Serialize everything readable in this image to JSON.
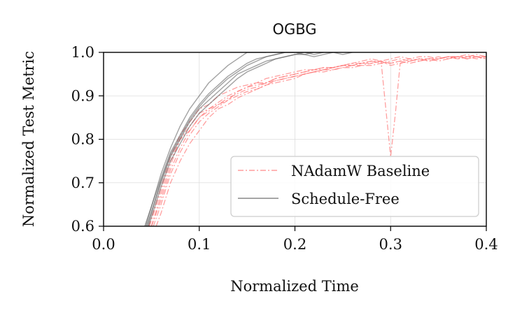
{
  "chart_data": {
    "type": "line",
    "title": "OGBG",
    "xlabel": "Normalized Time",
    "ylabel": "Normalized Test Metric",
    "xlim": [
      0.0,
      0.4
    ],
    "ylim": [
      0.6,
      1.0
    ],
    "xticks": [
      0.0,
      0.1,
      0.2,
      0.3,
      0.4
    ],
    "yticks": [
      0.6,
      0.7,
      0.8,
      0.9,
      1.0
    ],
    "xtick_labels": [
      "0.0",
      "0.1",
      "0.2",
      "0.3",
      "0.4"
    ],
    "ytick_labels": [
      "0.6",
      "0.7",
      "0.8",
      "0.9",
      "1.0"
    ],
    "grid": true,
    "legend_position": "bottom-right",
    "colors": {
      "baseline": "#ff6b6b",
      "schedule_free": "#555555",
      "grid": "#dddddd",
      "axis": "#000000"
    },
    "legend": [
      {
        "label": "NAdamW Baseline",
        "series_key": "baseline"
      },
      {
        "label": "Schedule-Free",
        "series_key": "schedule_free"
      }
    ],
    "series": [
      {
        "name": "NAdamW Baseline",
        "group": "baseline",
        "x": [
          0.047,
          0.06,
          0.07,
          0.08,
          0.09,
          0.1,
          0.11,
          0.12,
          0.13,
          0.14,
          0.15,
          0.16,
          0.17,
          0.18,
          0.19,
          0.2,
          0.21,
          0.22,
          0.23,
          0.24,
          0.25,
          0.26,
          0.27,
          0.28,
          0.29,
          0.3,
          0.31,
          0.32,
          0.33,
          0.34,
          0.35,
          0.36,
          0.37,
          0.38,
          0.39,
          0.4
        ],
        "y": [
          0.6,
          0.69,
          0.76,
          0.81,
          0.84,
          0.87,
          0.88,
          0.9,
          0.91,
          0.92,
          0.925,
          0.93,
          0.94,
          0.945,
          0.95,
          0.955,
          0.96,
          0.96,
          0.965,
          0.965,
          0.97,
          0.97,
          0.975,
          0.975,
          0.98,
          0.975,
          0.98,
          0.985,
          0.98,
          0.985,
          0.985,
          0.99,
          0.985,
          0.99,
          0.985,
          0.99
        ]
      },
      {
        "name": "NAdamW Baseline",
        "group": "baseline",
        "x": [
          0.05,
          0.06,
          0.07,
          0.08,
          0.09,
          0.1,
          0.11,
          0.12,
          0.13,
          0.14,
          0.15,
          0.16,
          0.17,
          0.18,
          0.19,
          0.2,
          0.21,
          0.22,
          0.23,
          0.24,
          0.25,
          0.26,
          0.27,
          0.28,
          0.29,
          0.3,
          0.31,
          0.32,
          0.33,
          0.34,
          0.35,
          0.36,
          0.37,
          0.38,
          0.39,
          0.4
        ],
        "y": [
          0.6,
          0.67,
          0.74,
          0.8,
          0.83,
          0.86,
          0.87,
          0.885,
          0.9,
          0.91,
          0.92,
          0.925,
          0.93,
          0.935,
          0.94,
          0.945,
          0.95,
          0.955,
          0.96,
          0.96,
          0.965,
          0.97,
          0.97,
          0.975,
          0.98,
          0.97,
          0.975,
          0.98,
          0.985,
          0.98,
          0.985,
          0.99,
          0.985,
          0.99,
          0.99,
          0.985
        ]
      },
      {
        "name": "NAdamW Baseline",
        "group": "baseline",
        "x": [
          0.052,
          0.06,
          0.07,
          0.08,
          0.09,
          0.1,
          0.11,
          0.12,
          0.13,
          0.14,
          0.15,
          0.16,
          0.17,
          0.18,
          0.19,
          0.2,
          0.21,
          0.22,
          0.23,
          0.24,
          0.25,
          0.26,
          0.27,
          0.28,
          0.29,
          0.3,
          0.31,
          0.32,
          0.33,
          0.34,
          0.35,
          0.36,
          0.37,
          0.38,
          0.39,
          0.4
        ],
        "y": [
          0.6,
          0.65,
          0.72,
          0.77,
          0.81,
          0.84,
          0.86,
          0.875,
          0.89,
          0.9,
          0.91,
          0.915,
          0.925,
          0.93,
          0.935,
          0.94,
          0.95,
          0.955,
          0.96,
          0.965,
          0.97,
          0.975,
          0.98,
          0.985,
          0.98,
          0.985,
          0.99,
          0.985,
          0.99,
          0.99,
          0.985,
          0.99,
          0.99,
          0.995,
          0.99,
          0.99
        ]
      },
      {
        "name": "NAdamW Baseline",
        "group": "baseline",
        "x": [
          0.048,
          0.06,
          0.07,
          0.08,
          0.09,
          0.1,
          0.11,
          0.12,
          0.13,
          0.14,
          0.15,
          0.16,
          0.17,
          0.18,
          0.19,
          0.2,
          0.21,
          0.22,
          0.23,
          0.24,
          0.25,
          0.26,
          0.27,
          0.28,
          0.29,
          0.295,
          0.3,
          0.305,
          0.31,
          0.32,
          0.33,
          0.34,
          0.35,
          0.36,
          0.37,
          0.38,
          0.39,
          0.4
        ],
        "y": [
          0.6,
          0.68,
          0.75,
          0.8,
          0.82,
          0.85,
          0.87,
          0.88,
          0.89,
          0.91,
          0.92,
          0.93,
          0.93,
          0.94,
          0.945,
          0.95,
          0.955,
          0.96,
          0.96,
          0.965,
          0.97,
          0.975,
          0.975,
          0.98,
          0.98,
          0.87,
          0.76,
          0.86,
          0.975,
          0.98,
          0.985,
          0.98,
          0.985,
          0.99,
          0.99,
          0.985,
          0.99,
          0.99
        ]
      },
      {
        "name": "NAdamW Baseline",
        "group": "baseline",
        "x": [
          0.055,
          0.06,
          0.07,
          0.08,
          0.09,
          0.1,
          0.11,
          0.12,
          0.13,
          0.14,
          0.15,
          0.16,
          0.17,
          0.18,
          0.19,
          0.2,
          0.21,
          0.22,
          0.23,
          0.24,
          0.25,
          0.26,
          0.27,
          0.28,
          0.29,
          0.3,
          0.31,
          0.32,
          0.33,
          0.34,
          0.35,
          0.36,
          0.37,
          0.38,
          0.39,
          0.4
        ],
        "y": [
          0.6,
          0.63,
          0.7,
          0.75,
          0.79,
          0.82,
          0.85,
          0.87,
          0.88,
          0.895,
          0.905,
          0.915,
          0.925,
          0.935,
          0.94,
          0.945,
          0.95,
          0.955,
          0.955,
          0.96,
          0.965,
          0.965,
          0.97,
          0.97,
          0.975,
          0.975,
          0.98,
          0.975,
          0.98,
          0.985,
          0.98,
          0.985,
          0.99,
          0.985,
          0.99,
          0.985
        ]
      },
      {
        "name": "NAdamW Baseline",
        "group": "baseline",
        "x": [
          0.05,
          0.06,
          0.07,
          0.08,
          0.09,
          0.1,
          0.11,
          0.12,
          0.13,
          0.14,
          0.15,
          0.16,
          0.17,
          0.18,
          0.19,
          0.2,
          0.21,
          0.22,
          0.23,
          0.24,
          0.25,
          0.26,
          0.27,
          0.28,
          0.29,
          0.3,
          0.31,
          0.32,
          0.33,
          0.34,
          0.35,
          0.36,
          0.37,
          0.38,
          0.39,
          0.4
        ],
        "y": [
          0.6,
          0.66,
          0.73,
          0.78,
          0.82,
          0.85,
          0.865,
          0.88,
          0.895,
          0.905,
          0.915,
          0.92,
          0.93,
          0.94,
          0.945,
          0.95,
          0.955,
          0.96,
          0.965,
          0.965,
          0.97,
          0.97,
          0.975,
          0.98,
          0.975,
          0.98,
          0.985,
          0.98,
          0.985,
          0.985,
          0.99,
          0.985,
          0.99,
          0.99,
          0.995,
          0.99
        ]
      },
      {
        "name": "Schedule-Free",
        "group": "schedule_free",
        "x": [
          0.045,
          0.06,
          0.07,
          0.08,
          0.09,
          0.1,
          0.11,
          0.12,
          0.13,
          0.14,
          0.15,
          0.16,
          0.17,
          0.18,
          0.19,
          0.2,
          0.21,
          0.22,
          0.23,
          0.24,
          0.25,
          0.26
        ],
        "y": [
          0.6,
          0.7,
          0.76,
          0.8,
          0.84,
          0.87,
          0.89,
          0.91,
          0.93,
          0.95,
          0.96,
          0.97,
          0.98,
          0.985,
          0.99,
          0.995,
          0.995,
          0.99,
          0.995,
          1.0,
          0.995,
          1.0
        ]
      },
      {
        "name": "Schedule-Free",
        "group": "schedule_free",
        "x": [
          0.043,
          0.06,
          0.07,
          0.08,
          0.09,
          0.1,
          0.11,
          0.12,
          0.13,
          0.14,
          0.15,
          0.16,
          0.17,
          0.18,
          0.19,
          0.2,
          0.21,
          0.22,
          0.23,
          0.24
        ],
        "y": [
          0.6,
          0.71,
          0.77,
          0.81,
          0.85,
          0.88,
          0.905,
          0.925,
          0.945,
          0.96,
          0.975,
          0.985,
          0.99,
          0.995,
          1.0,
          1.0,
          0.995,
          1.0,
          1.0,
          1.0
        ]
      },
      {
        "name": "Schedule-Free",
        "group": "schedule_free",
        "x": [
          0.047,
          0.06,
          0.07,
          0.08,
          0.09,
          0.1,
          0.11,
          0.12,
          0.13,
          0.14,
          0.15,
          0.16,
          0.17,
          0.18,
          0.19,
          0.2,
          0.21,
          0.22,
          0.23
        ],
        "y": [
          0.6,
          0.69,
          0.75,
          0.79,
          0.83,
          0.86,
          0.88,
          0.9,
          0.92,
          0.94,
          0.955,
          0.965,
          0.975,
          0.985,
          0.99,
          0.995,
          1.0,
          0.995,
          1.0
        ]
      },
      {
        "name": "Schedule-Free",
        "group": "schedule_free",
        "x": [
          0.044,
          0.06,
          0.07,
          0.08,
          0.09,
          0.1,
          0.11,
          0.12,
          0.13,
          0.14,
          0.15,
          0.16,
          0.17
        ],
        "y": [
          0.6,
          0.72,
          0.78,
          0.83,
          0.87,
          0.9,
          0.93,
          0.95,
          0.97,
          0.985,
          1.0,
          1.0,
          1.0
        ]
      },
      {
        "name": "Schedule-Free",
        "group": "schedule_free",
        "x": [
          0.046,
          0.06,
          0.07,
          0.08,
          0.09,
          0.1,
          0.11,
          0.12,
          0.13,
          0.14,
          0.15,
          0.16,
          0.17,
          0.18,
          0.19,
          0.2
        ],
        "y": [
          0.6,
          0.705,
          0.765,
          0.805,
          0.845,
          0.875,
          0.9,
          0.92,
          0.94,
          0.955,
          0.97,
          0.98,
          0.99,
          0.995,
          1.0,
          1.0
        ]
      }
    ]
  }
}
